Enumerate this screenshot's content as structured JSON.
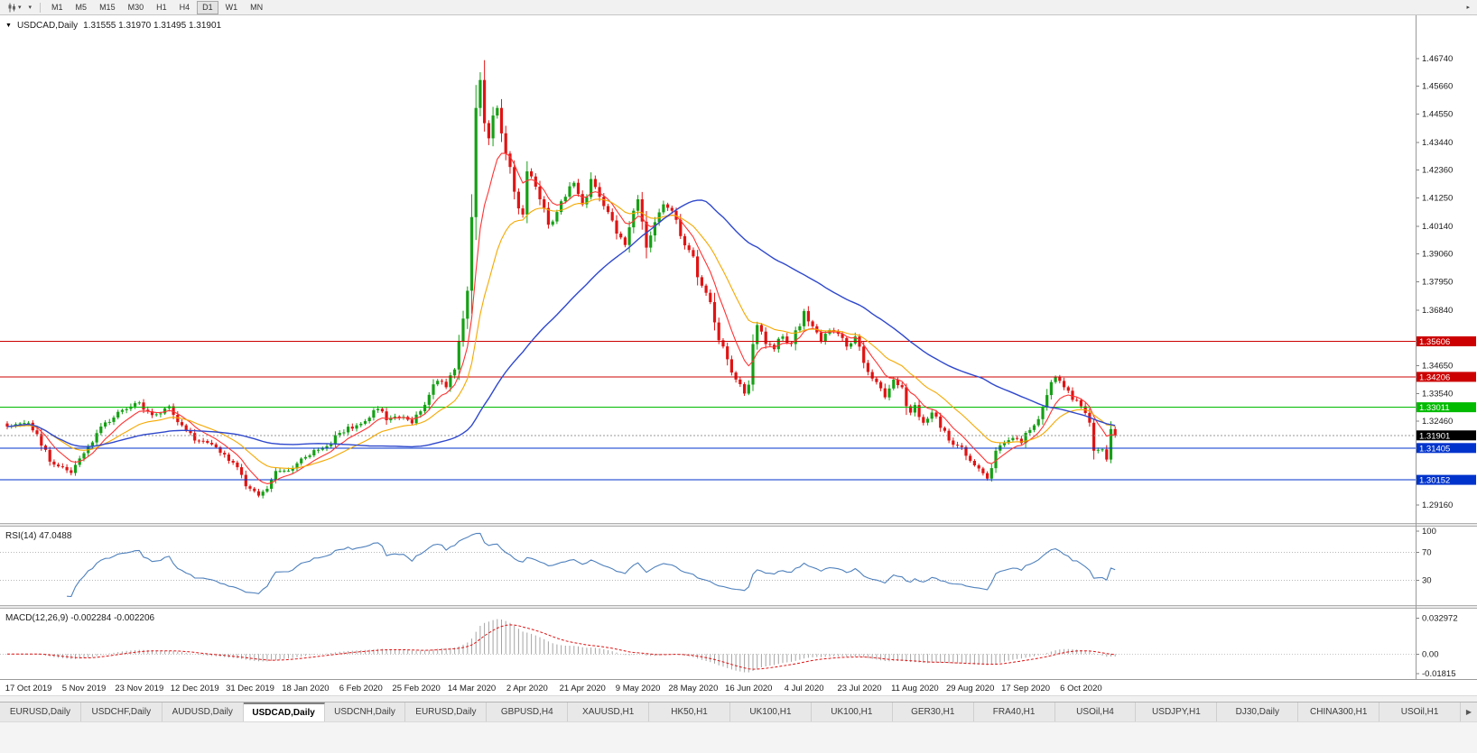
{
  "toolbar": {
    "timeframes": [
      "M1",
      "M5",
      "M15",
      "M30",
      "H1",
      "H4",
      "D1",
      "W1",
      "MN"
    ],
    "active_timeframe": "D1",
    "caret_icon": "▾",
    "scroll_icon": "▸"
  },
  "chart": {
    "dropdown_icon": "▼",
    "title": "USDCAD,Daily",
    "ohlc_text": "1.31555 1.31970 1.31495 1.31901"
  },
  "rsi": {
    "label": "RSI(14) 47.0488",
    "period": 14,
    "current_value": "47.0488",
    "levels": [
      70,
      30
    ],
    "scale_ticks": [
      {
        "label": "100",
        "value": 100
      },
      {
        "label": "70",
        "value": 70
      },
      {
        "label": "30",
        "value": 30
      }
    ]
  },
  "macd": {
    "label": "MACD(12,26,9) -0.002284 -0.002206",
    "parameters": "12,26,9",
    "main_value": "-0.002284",
    "signal_value": "-0.002206",
    "scale_ticks": [
      {
        "label": "0.032972",
        "value": 0.032972
      },
      {
        "label": "0.00",
        "value": 0
      },
      {
        "label": "-0.01815",
        "value": -0.01815
      }
    ]
  },
  "tab_bar": {
    "tabs": [
      "EURUSD,Daily",
      "USDCHF,Daily",
      "AUDUSD,Daily",
      "USDCAD,Daily",
      "USDCNH,Daily",
      "EURUSD,Daily",
      "GBPUSD,H4",
      "XAUUSD,H1",
      "HK50,H1",
      "UK100,H1",
      "UK100,H1",
      "GER30,H1",
      "FRA40,H1",
      "USOil,H4",
      "USDJPY,H1",
      "DJ30,Daily",
      "CHINA300,H1",
      "USOil,H1"
    ],
    "active_index": 3,
    "scroll_right_icon": "▶"
  },
  "colors": {
    "candle_up": "#16a016",
    "candle_down": "#e01414",
    "ma_fast": "#ff3232",
    "ma_mid": "#f5a800",
    "ma_slow": "#2f48cc",
    "rsi_line": "#4f81bd",
    "macd_histogram": "#a4a4a4",
    "macd_signal": "#e01414",
    "current_price_bg": "#000000",
    "level_red": "#cc0000",
    "level_green": "#00bb00",
    "level_blue": "#0033cc"
  },
  "chart_data": {
    "type": "candlestick",
    "symbol": "USDCAD",
    "timeframe": "Daily",
    "current_ohlc": {
      "open": 1.31555,
      "high": 1.3197,
      "low": 1.31495,
      "close": 1.31901
    },
    "visible_high": 1.4668,
    "visible_low": 1.2948,
    "price_range_estimate": {
      "top": 1.477,
      "bottom": 1.2845
    },
    "candle_count": 261,
    "close_anchors": [
      [
        0,
        1.3225
      ],
      [
        5,
        1.324
      ],
      [
        8,
        1.315
      ],
      [
        11,
        1.3075
      ],
      [
        15,
        1.3042
      ],
      [
        18,
        1.312
      ],
      [
        22,
        1.3225
      ],
      [
        27,
        1.329
      ],
      [
        31,
        1.332
      ],
      [
        34,
        1.327
      ],
      [
        38,
        1.3305
      ],
      [
        41,
        1.323
      ],
      [
        44,
        1.317
      ],
      [
        48,
        1.3155
      ],
      [
        51,
        1.3115
      ],
      [
        54,
        1.3065
      ],
      [
        56,
        1.299
      ],
      [
        59,
        1.2953
      ],
      [
        61,
        1.298
      ],
      [
        63,
        1.305
      ],
      [
        67,
        1.306
      ],
      [
        70,
        1.3105
      ],
      [
        74,
        1.314
      ],
      [
        78,
        1.32
      ],
      [
        82,
        1.323
      ],
      [
        85,
        1.326
      ],
      [
        87,
        1.3295
      ],
      [
        89,
        1.325
      ],
      [
        92,
        1.3262
      ],
      [
        95,
        1.3238
      ],
      [
        97,
        1.3285
      ],
      [
        99,
        1.335
      ],
      [
        101,
        1.3405
      ],
      [
        103,
        1.338
      ],
      [
        105,
        1.345
      ],
      [
        106,
        1.356
      ],
      [
        107,
        1.365
      ],
      [
        108,
        1.376
      ],
      [
        109,
        1.405
      ],
      [
        110,
        1.448
      ],
      [
        111,
        1.459
      ],
      [
        112,
        1.442
      ],
      [
        113,
        1.436
      ],
      [
        114,
        1.445
      ],
      [
        115,
        1.448
      ],
      [
        116,
        1.438
      ],
      [
        117,
        1.43
      ],
      [
        119,
        1.415
      ],
      [
        121,
        1.406
      ],
      [
        122,
        1.423
      ],
      [
        123,
        1.421
      ],
      [
        125,
        1.412
      ],
      [
        127,
        1.402
      ],
      [
        129,
        1.407
      ],
      [
        131,
        1.413
      ],
      [
        133,
        1.4185
      ],
      [
        135,
        1.41
      ],
      [
        137,
        1.42
      ],
      [
        139,
        1.413
      ],
      [
        141,
        1.407
      ],
      [
        143,
        1.3985
      ],
      [
        145,
        1.394
      ],
      [
        147,
        1.4075
      ],
      [
        148,
        1.412
      ],
      [
        150,
        1.393
      ],
      [
        152,
        1.403
      ],
      [
        154,
        1.41
      ],
      [
        156,
        1.4075
      ],
      [
        158,
        1.3975
      ],
      [
        160,
        1.392
      ],
      [
        161,
        1.3895
      ],
      [
        163,
        1.378
      ],
      [
        165,
        1.3715
      ],
      [
        167,
        1.3565
      ],
      [
        169,
        1.349
      ],
      [
        171,
        1.341
      ],
      [
        173,
        1.3355
      ],
      [
        174,
        1.339
      ],
      [
        175,
        1.355
      ],
      [
        176,
        1.3625
      ],
      [
        178,
        1.355
      ],
      [
        180,
        1.353
      ],
      [
        182,
        1.358
      ],
      [
        184,
        1.355
      ],
      [
        186,
        1.362
      ],
      [
        187,
        1.368
      ],
      [
        189,
        1.362
      ],
      [
        191,
        1.356
      ],
      [
        193,
        1.3605
      ],
      [
        195,
        1.359
      ],
      [
        197,
        1.354
      ],
      [
        199,
        1.358
      ],
      [
        200,
        1.354
      ],
      [
        202,
        1.344
      ],
      [
        204,
        1.34
      ],
      [
        206,
        1.334
      ],
      [
        208,
        1.341
      ],
      [
        210,
        1.338
      ],
      [
        212,
        1.328
      ],
      [
        213,
        1.331
      ],
      [
        215,
        1.324
      ],
      [
        217,
        1.328
      ],
      [
        219,
        1.322
      ],
      [
        221,
        1.317
      ],
      [
        223,
        1.315
      ],
      [
        225,
        1.311
      ],
      [
        226,
        1.309
      ],
      [
        228,
        1.306
      ],
      [
        230,
        1.302
      ],
      [
        232,
        1.313
      ],
      [
        234,
        1.316
      ],
      [
        236,
        1.318
      ],
      [
        238,
        1.316
      ],
      [
        239,
        1.32
      ],
      [
        241,
        1.323
      ],
      [
        243,
        1.33
      ],
      [
        245,
        1.34
      ],
      [
        246,
        1.342
      ],
      [
        248,
        1.338
      ],
      [
        250,
        1.333
      ],
      [
        252,
        1.3305
      ],
      [
        254,
        1.324
      ],
      [
        255,
        1.313
      ],
      [
        257,
        1.3135
      ],
      [
        258,
        1.3095
      ],
      [
        259,
        1.3215
      ],
      [
        260,
        1.319
      ]
    ],
    "x_tick_labels": [
      "17 Oct 2019",
      "5 Nov 2019",
      "23 Nov 2019",
      "12 Dec 2019",
      "31 Dec 2019",
      "18 Jan 2020",
      "6 Feb 2020",
      "25 Feb 2020",
      "14 Mar 2020",
      "2 Apr 2020",
      "21 Apr 2020",
      "9 May 2020",
      "28 May 2020",
      "16 Jun 2020",
      "4 Jul 2020",
      "23 Jul 2020",
      "11 Aug 2020",
      "29 Aug 2020",
      "17 Sep 2020",
      "6 Oct 2020"
    ],
    "y_axis_ticks": [
      {
        "label": "1.46740",
        "value": 1.4674
      },
      {
        "label": "1.45660",
        "value": 1.4566
      },
      {
        "label": "1.44550",
        "value": 1.4455
      },
      {
        "label": "1.43440",
        "value": 1.4344
      },
      {
        "label": "1.42360",
        "value": 1.4236
      },
      {
        "label": "1.41250",
        "value": 1.4125
      },
      {
        "label": "1.40140",
        "value": 1.4014
      },
      {
        "label": "1.39060",
        "value": 1.3906
      },
      {
        "label": "1.37950",
        "value": 1.3795
      },
      {
        "label": "1.36840",
        "value": 1.3684
      },
      {
        "label": "1.34650",
        "value": 1.3465
      },
      {
        "label": "1.33540",
        "value": 1.3354
      },
      {
        "label": "1.32460",
        "value": 1.3246
      },
      {
        "label": "1.29160",
        "value": 1.2916
      }
    ],
    "horizontal_lines": [
      {
        "price": 1.35606,
        "label": "1.35606",
        "color": "#cc0000"
      },
      {
        "price": 1.34206,
        "label": "1.34206",
        "color": "#cc0000"
      },
      {
        "price": 1.33011,
        "label": "1.33011",
        "color": "#00bb00"
      },
      {
        "price": 1.31405,
        "label": "1.31405",
        "color": "#0033cc"
      },
      {
        "price": 1.30152,
        "label": "1.30152",
        "color": "#0033cc"
      }
    ],
    "current_price_label": {
      "value": 1.31901,
      "label": "1.31901"
    },
    "moving_averages": [
      {
        "type": "ema",
        "period": 8,
        "color": "#ff3232"
      },
      {
        "type": "ema",
        "period": 20,
        "color": "#f5a800"
      },
      {
        "type": "sma",
        "period": 55,
        "color": "#2f48cc"
      }
    ]
  }
}
